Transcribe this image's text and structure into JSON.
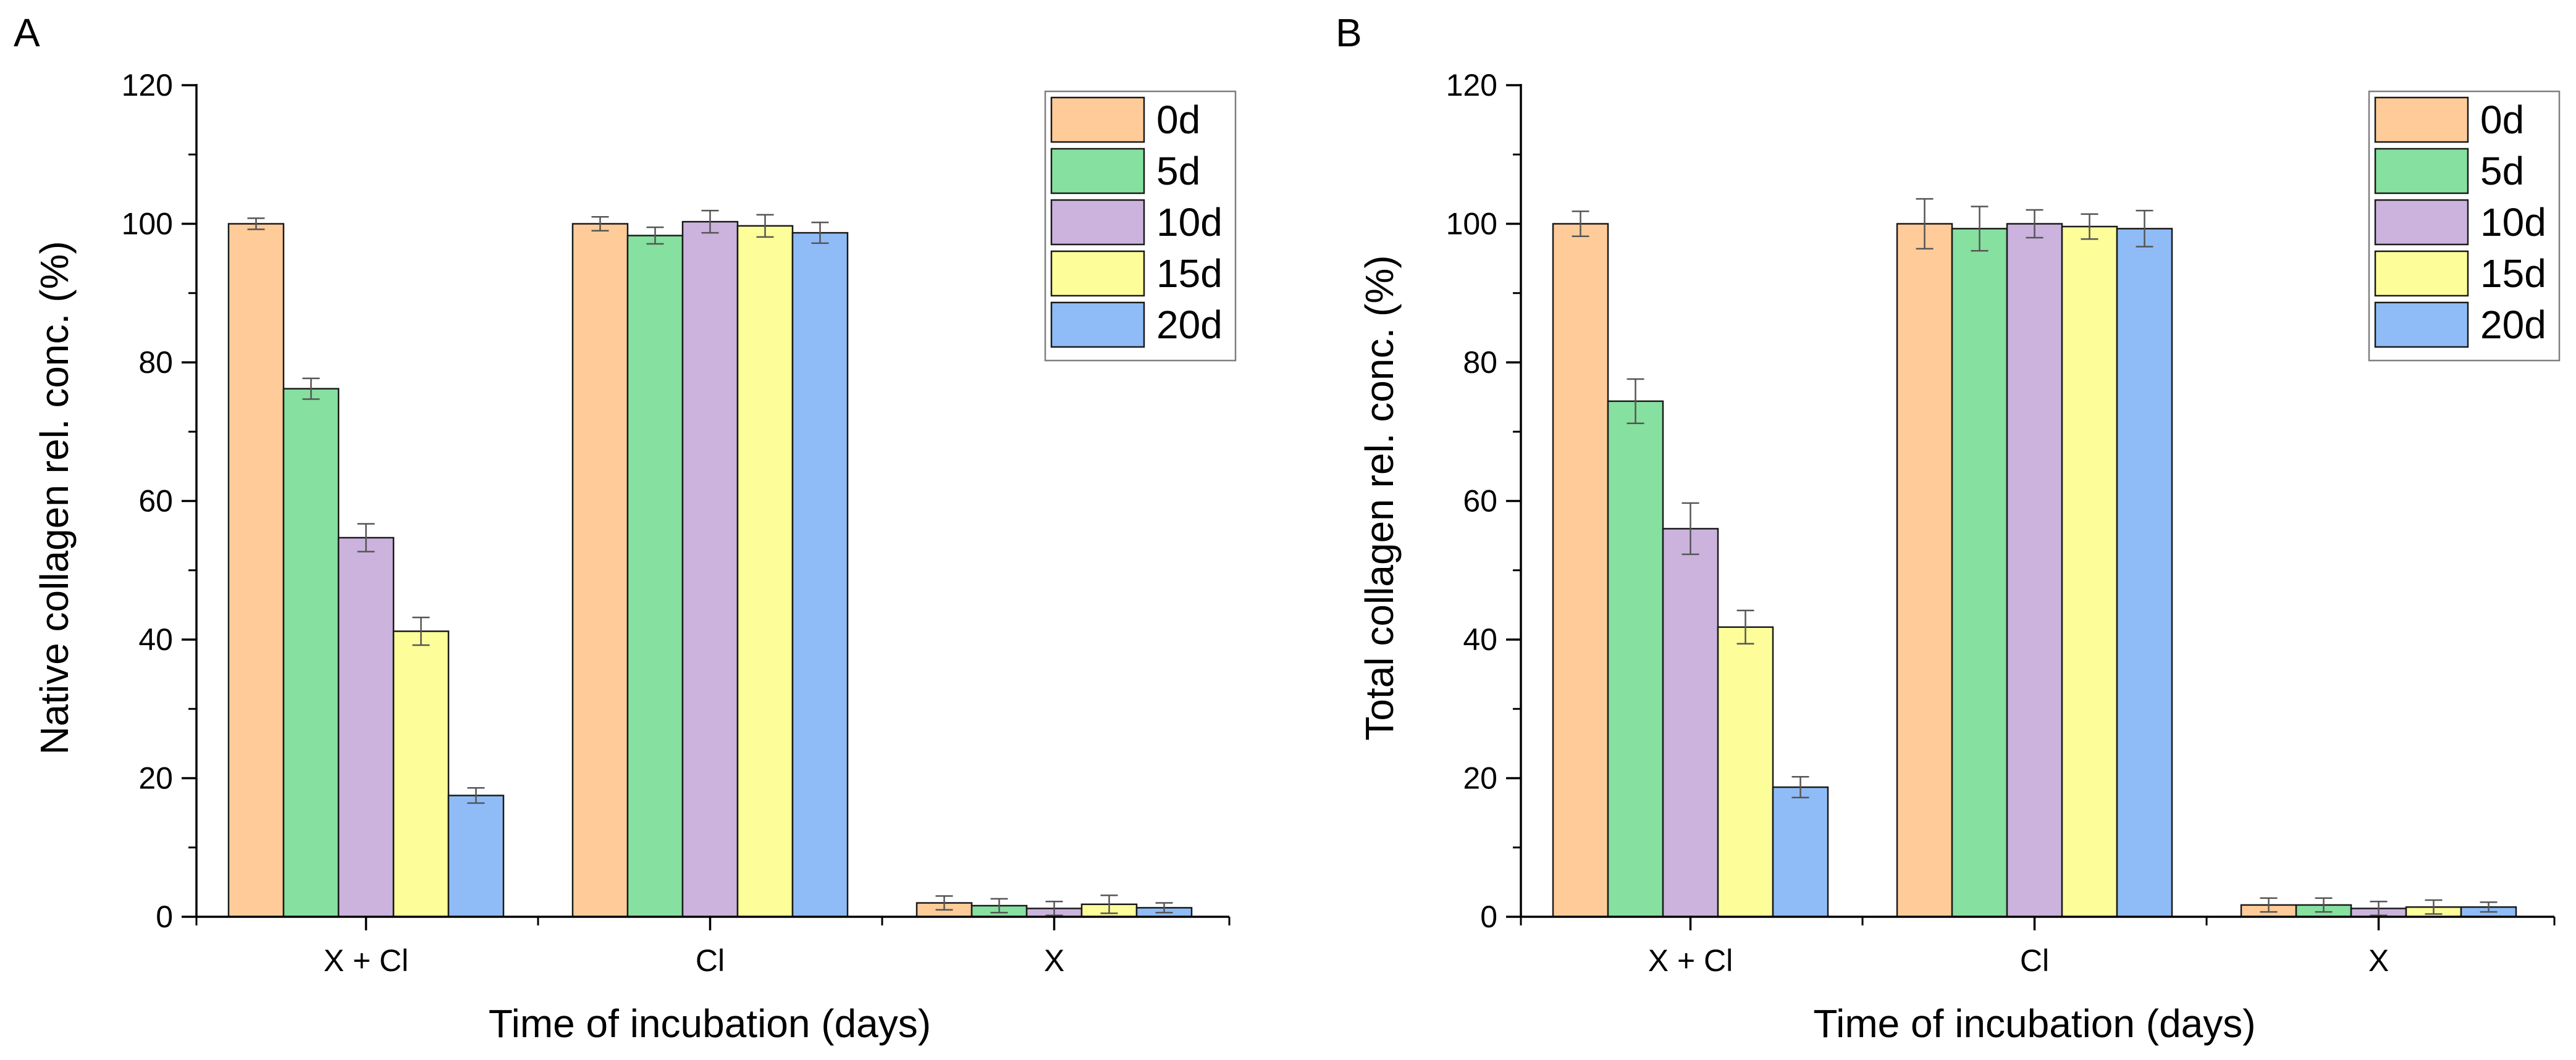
{
  "colors": {
    "0d": "#ffcc99",
    "5d": "#86e09f",
    "10d": "#cbb3de",
    "15d": "#fdfd9a",
    "20d": "#8fbcf6",
    "axis": "#000000",
    "bar_stroke": "#1a1a1a",
    "error_bar": "#555555",
    "legend_border": "#7f7f7f"
  },
  "chart_data": [
    {
      "type": "bar",
      "panel_label": "A",
      "categories": [
        "X + Cl",
        "Cl",
        "X"
      ],
      "ylabel": "Native collagen rel. conc. (%)",
      "xlabel": "Time of incubation (days)",
      "ylim": [
        0,
        120
      ],
      "yticks": [
        0,
        20,
        40,
        60,
        80,
        100,
        120
      ],
      "legend_position": "top-right",
      "grid": false,
      "series": [
        {
          "name": "0d",
          "values": [
            100,
            100,
            2
          ],
          "errors": [
            0.8,
            1.0,
            1.0
          ]
        },
        {
          "name": "5d",
          "values": [
            76.2,
            98.3,
            1.6
          ],
          "errors": [
            1.5,
            1.2,
            1.0
          ]
        },
        {
          "name": "10d",
          "values": [
            54.7,
            100.3,
            1.2
          ],
          "errors": [
            2.0,
            1.6,
            1.0
          ]
        },
        {
          "name": "15d",
          "values": [
            41.2,
            99.7,
            1.8
          ],
          "errors": [
            2.0,
            1.6,
            1.3
          ]
        },
        {
          "name": "20d",
          "values": [
            17.5,
            98.7,
            1.3
          ],
          "errors": [
            1.1,
            1.5,
            0.7
          ]
        }
      ]
    },
    {
      "type": "bar",
      "panel_label": "B",
      "categories": [
        "X + Cl",
        "Cl",
        "X"
      ],
      "ylabel": "Total collagen rel. conc. (%)",
      "xlabel": "Time of incubation (days)",
      "ylim": [
        0,
        120
      ],
      "yticks": [
        0,
        20,
        40,
        60,
        80,
        100,
        120
      ],
      "legend_position": "top-right",
      "grid": false,
      "series": [
        {
          "name": "0d",
          "values": [
            100,
            100,
            1.7
          ],
          "errors": [
            1.8,
            3.6,
            1.0
          ]
        },
        {
          "name": "5d",
          "values": [
            74.4,
            99.3,
            1.7
          ],
          "errors": [
            3.2,
            3.2,
            1.0
          ]
        },
        {
          "name": "10d",
          "values": [
            56,
            100,
            1.2
          ],
          "errors": [
            3.7,
            2.0,
            1.0
          ]
        },
        {
          "name": "15d",
          "values": [
            41.8,
            99.6,
            1.4
          ],
          "errors": [
            2.4,
            1.8,
            1.0
          ]
        },
        {
          "name": "20d",
          "values": [
            18.7,
            99.3,
            1.4
          ],
          "errors": [
            1.5,
            2.6,
            0.7
          ]
        }
      ]
    }
  ]
}
